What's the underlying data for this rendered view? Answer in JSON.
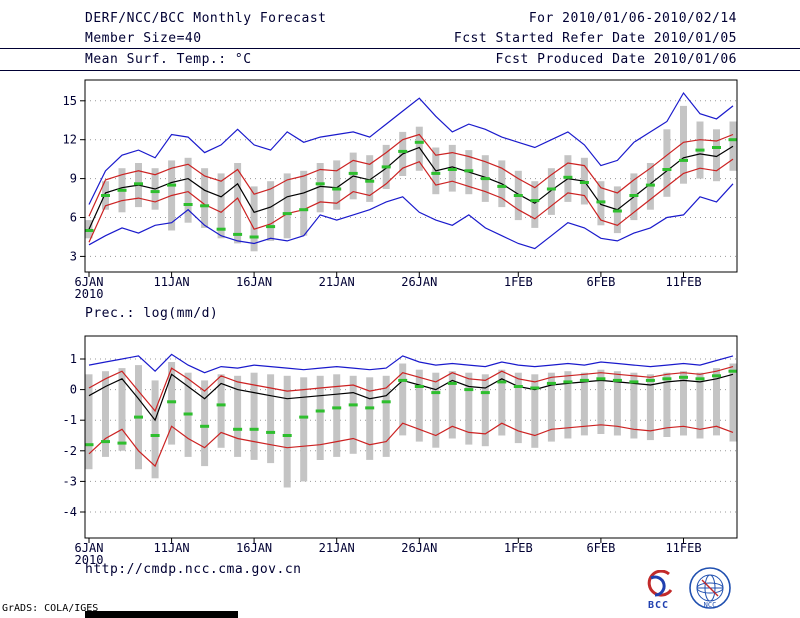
{
  "header": {
    "title": "DERF/NCC/BCC Monthly Forecast",
    "member_size": "Member Size=40",
    "temp_label": "Mean Surf. Temp.: °C",
    "period": "For 2010/01/06-2010/02/14",
    "refer_date": "Fcst Started Refer Date 2010/01/05",
    "produced_date": "Fcst Produced Date 2010/01/06"
  },
  "footer": {
    "url": "http://cmdp.ncc.cma.gov.cn",
    "bcc_label": "BCC",
    "ncc_label": "NCC",
    "credit": "GrADS: COLA/IGES"
  },
  "colors": {
    "text": "#000033",
    "envelope_line": "#1a1acc",
    "std_line": "#cc2222",
    "mean_line": "#000000",
    "marker": "#2ebe2e",
    "spread_bar": "#c4c4c4",
    "grid": "#999999",
    "frame": "#000000"
  },
  "chart_data": [
    {
      "type": "line",
      "panel": "temperature",
      "title": "Mean Surf. Temp.: °C",
      "ylim": [
        1.8,
        16.6
      ],
      "yticks": [
        3,
        6,
        9,
        12,
        15
      ],
      "x_count": 40,
      "xticks": [
        {
          "i": 0,
          "label": "6JAN",
          "sub": "2010"
        },
        {
          "i": 5,
          "label": "11JAN"
        },
        {
          "i": 10,
          "label": "16JAN"
        },
        {
          "i": 15,
          "label": "21JAN"
        },
        {
          "i": 20,
          "label": "26JAN"
        },
        {
          "i": 26,
          "label": "1FEB"
        },
        {
          "i": 31,
          "label": "6FEB"
        },
        {
          "i": 36,
          "label": "11FEB"
        }
      ],
      "bars": {
        "name": "ensemble-spread",
        "color": "#c4c4c4",
        "low": [
          4.4,
          6.6,
          6.4,
          6.8,
          6.6,
          5.0,
          5.6,
          5.2,
          4.4,
          4.0,
          3.4,
          4.2,
          4.4,
          4.6,
          6.4,
          6.6,
          7.4,
          7.2,
          8.2,
          9.2,
          9.6,
          7.8,
          8.0,
          7.8,
          7.2,
          6.8,
          5.8,
          5.2,
          6.2,
          7.2,
          7.0,
          5.4,
          4.8,
          5.8,
          6.6,
          7.6,
          8.6,
          9.0,
          8.8,
          9.6
        ],
        "high": [
          5.8,
          8.8,
          9.8,
          10.2,
          9.8,
          10.4,
          10.6,
          9.8,
          9.4,
          10.2,
          8.4,
          8.8,
          9.4,
          9.6,
          10.2,
          10.4,
          11.0,
          10.8,
          11.6,
          12.6,
          13.0,
          11.4,
          11.6,
          11.2,
          10.8,
          10.4,
          9.6,
          8.8,
          9.8,
          10.8,
          10.6,
          8.8,
          8.4,
          9.4,
          10.2,
          12.8,
          14.6,
          13.4,
          12.8,
          13.4
        ]
      },
      "markers": {
        "name": "median-marker",
        "color": "#2ebe2e",
        "values": [
          5.0,
          7.7,
          8.1,
          8.6,
          8.0,
          8.5,
          7.0,
          6.9,
          5.1,
          4.7,
          4.5,
          5.3,
          6.3,
          6.6,
          8.6,
          8.2,
          9.4,
          8.8,
          9.9,
          11.1,
          11.8,
          9.4,
          9.7,
          9.6,
          9.0,
          8.4,
          7.7,
          7.3,
          8.2,
          9.1,
          8.7,
          7.2,
          6.5,
          7.7,
          8.5,
          9.7,
          10.4,
          11.2,
          11.4,
          12.0
        ]
      },
      "series": [
        {
          "name": "ensemble-max",
          "color": "#1a1acc",
          "values": [
            7.0,
            9.6,
            10.8,
            11.2,
            10.6,
            12.4,
            12.2,
            11.0,
            11.6,
            12.8,
            11.6,
            11.2,
            12.6,
            11.8,
            12.2,
            12.4,
            12.6,
            12.2,
            13.2,
            14.2,
            15.2,
            13.8,
            12.6,
            13.2,
            12.8,
            12.2,
            11.8,
            11.4,
            12.0,
            12.6,
            11.6,
            10.0,
            10.4,
            11.8,
            12.6,
            13.4,
            15.6,
            14.0,
            13.6,
            14.6
          ]
        },
        {
          "name": "mean-plus-sd",
          "color": "#cc2222",
          "values": [
            6.1,
            8.9,
            9.3,
            9.6,
            9.3,
            9.8,
            10.1,
            9.2,
            8.8,
            9.7,
            7.8,
            8.2,
            8.9,
            9.2,
            9.7,
            9.6,
            10.4,
            10.1,
            11.0,
            12.0,
            12.4,
            10.8,
            11.0,
            10.7,
            10.3,
            9.8,
            9.0,
            8.3,
            9.3,
            10.2,
            10.0,
            8.3,
            7.9,
            8.9,
            9.8,
            10.8,
            11.8,
            12.0,
            11.9,
            12.4
          ]
        },
        {
          "name": "ensemble-mean",
          "color": "#000000",
          "values": [
            5.1,
            7.9,
            8.3,
            8.5,
            8.2,
            8.7,
            9.0,
            8.1,
            7.6,
            8.6,
            6.4,
            6.8,
            7.6,
            7.9,
            8.4,
            8.3,
            9.2,
            8.9,
            9.8,
            10.9,
            11.4,
            9.6,
            9.9,
            9.5,
            9.1,
            8.6,
            7.8,
            7.1,
            8.1,
            9.0,
            8.8,
            7.0,
            6.6,
            7.6,
            8.6,
            9.6,
            10.6,
            10.9,
            10.7,
            11.5
          ]
        },
        {
          "name": "mean-minus-sd",
          "color": "#cc2222",
          "values": [
            4.1,
            6.9,
            7.3,
            7.5,
            7.2,
            7.7,
            8.0,
            7.0,
            6.4,
            7.5,
            5.1,
            5.5,
            6.3,
            6.6,
            7.2,
            7.1,
            8.0,
            7.7,
            8.6,
            9.8,
            10.3,
            8.5,
            8.8,
            8.4,
            8.0,
            7.5,
            6.6,
            5.9,
            6.9,
            7.9,
            7.7,
            5.8,
            5.4,
            6.4,
            7.4,
            8.4,
            9.4,
            9.8,
            9.6,
            10.5
          ]
        },
        {
          "name": "ensemble-min",
          "color": "#1a1acc",
          "values": [
            3.9,
            4.6,
            5.2,
            4.8,
            5.4,
            5.6,
            6.6,
            5.4,
            4.6,
            4.2,
            4.0,
            4.4,
            4.2,
            4.6,
            6.2,
            5.8,
            6.2,
            6.6,
            7.2,
            7.6,
            6.4,
            5.8,
            5.4,
            6.2,
            5.2,
            4.6,
            4.0,
            3.6,
            4.6,
            5.6,
            5.2,
            4.4,
            4.2,
            4.8,
            5.2,
            6.0,
            6.2,
            7.6,
            7.2,
            8.6
          ]
        }
      ]
    },
    {
      "type": "line",
      "panel": "precipitation",
      "title": "Prec.: log(mm/d)",
      "ylim": [
        -4.85,
        1.75
      ],
      "yticks": [
        -4,
        -3,
        -2,
        -1,
        0,
        1
      ],
      "x_count": 40,
      "xticks": [
        {
          "i": 0,
          "label": "6JAN",
          "sub": "2010"
        },
        {
          "i": 5,
          "label": "11JAN"
        },
        {
          "i": 10,
          "label": "16JAN"
        },
        {
          "i": 15,
          "label": "21JAN"
        },
        {
          "i": 20,
          "label": "26JAN"
        },
        {
          "i": 26,
          "label": "1FEB"
        },
        {
          "i": 31,
          "label": "6FEB"
        },
        {
          "i": 36,
          "label": "11FEB"
        }
      ],
      "bars": {
        "name": "ensemble-spread",
        "color": "#c4c4c4",
        "low": [
          -2.6,
          -2.2,
          -2.0,
          -2.6,
          -2.9,
          -1.8,
          -2.2,
          -2.5,
          -1.9,
          -2.2,
          -2.3,
          -2.4,
          -3.2,
          -3.0,
          -2.3,
          -2.2,
          -2.1,
          -2.3,
          -2.2,
          -1.5,
          -1.7,
          -1.9,
          -1.6,
          -1.8,
          -1.85,
          -1.5,
          -1.75,
          -1.9,
          -1.7,
          -1.6,
          -1.5,
          -1.45,
          -1.5,
          -1.6,
          -1.65,
          -1.55,
          -1.5,
          -1.6,
          -1.5,
          -1.7
        ],
        "high": [
          0.5,
          0.6,
          0.7,
          0.8,
          0.3,
          0.9,
          0.55,
          0.3,
          0.5,
          0.45,
          0.55,
          0.5,
          0.45,
          0.4,
          0.45,
          0.5,
          0.45,
          0.4,
          0.45,
          0.85,
          0.65,
          0.55,
          0.6,
          0.55,
          0.5,
          0.65,
          0.55,
          0.5,
          0.55,
          0.6,
          0.55,
          0.65,
          0.6,
          0.55,
          0.5,
          0.55,
          0.6,
          0.55,
          0.7,
          0.85
        ]
      },
      "markers": {
        "name": "median-marker",
        "color": "#2ebe2e",
        "values": [
          -1.8,
          -1.7,
          -1.75,
          -0.9,
          -1.5,
          -0.4,
          -0.8,
          -1.2,
          -0.5,
          -1.3,
          -1.3,
          -1.4,
          -1.5,
          -0.9,
          -0.7,
          -0.6,
          -0.5,
          -0.6,
          -0.4,
          0.3,
          0.1,
          -0.1,
          0.2,
          0.0,
          -0.1,
          0.25,
          0.1,
          0.05,
          0.2,
          0.25,
          0.3,
          0.35,
          0.3,
          0.25,
          0.3,
          0.35,
          0.4,
          0.35,
          0.45,
          0.6
        ]
      },
      "series": [
        {
          "name": "ensemble-max",
          "color": "#1a1acc",
          "values": [
            0.8,
            0.9,
            1.0,
            1.1,
            0.6,
            1.15,
            0.8,
            0.55,
            0.75,
            0.7,
            0.8,
            0.75,
            0.7,
            0.65,
            0.7,
            0.75,
            0.7,
            0.65,
            0.7,
            1.1,
            0.9,
            0.8,
            0.85,
            0.8,
            0.75,
            0.9,
            0.8,
            0.75,
            0.8,
            0.85,
            0.8,
            0.9,
            0.85,
            0.8,
            0.75,
            0.8,
            0.85,
            0.8,
            0.95,
            1.1
          ]
        },
        {
          "name": "mean-plus-sd",
          "color": "#cc2222",
          "values": [
            0.05,
            0.35,
            0.6,
            -0.05,
            -0.7,
            0.7,
            0.35,
            -0.05,
            0.45,
            0.25,
            0.15,
            0.05,
            -0.05,
            0.0,
            0.05,
            0.1,
            0.15,
            -0.05,
            0.05,
            0.55,
            0.4,
            0.25,
            0.55,
            0.35,
            0.3,
            0.6,
            0.35,
            0.25,
            0.4,
            0.45,
            0.5,
            0.55,
            0.5,
            0.45,
            0.4,
            0.5,
            0.55,
            0.5,
            0.6,
            0.75
          ]
        },
        {
          "name": "ensemble-mean",
          "color": "#000000",
          "values": [
            -0.2,
            0.1,
            0.35,
            -0.3,
            -1.0,
            0.5,
            0.1,
            -0.3,
            0.2,
            0.0,
            -0.1,
            -0.2,
            -0.3,
            -0.25,
            -0.2,
            -0.15,
            -0.1,
            -0.3,
            -0.2,
            0.3,
            0.15,
            0.0,
            0.3,
            0.1,
            0.05,
            0.35,
            0.1,
            0.0,
            0.15,
            0.2,
            0.25,
            0.3,
            0.25,
            0.2,
            0.15,
            0.25,
            0.3,
            0.25,
            0.35,
            0.5
          ]
        },
        {
          "name": "mean-minus-sd",
          "color": "#cc2222",
          "values": [
            -2.1,
            -1.6,
            -1.3,
            -2.0,
            -2.5,
            -1.2,
            -1.6,
            -1.9,
            -1.4,
            -1.6,
            -1.7,
            -1.8,
            -1.9,
            -1.85,
            -1.8,
            -1.7,
            -1.6,
            -1.8,
            -1.7,
            -1.1,
            -1.3,
            -1.5,
            -1.2,
            -1.4,
            -1.45,
            -1.1,
            -1.35,
            -1.5,
            -1.3,
            -1.25,
            -1.2,
            -1.15,
            -1.2,
            -1.3,
            -1.35,
            -1.25,
            -1.2,
            -1.3,
            -1.2,
            -1.4
          ]
        }
      ]
    }
  ]
}
